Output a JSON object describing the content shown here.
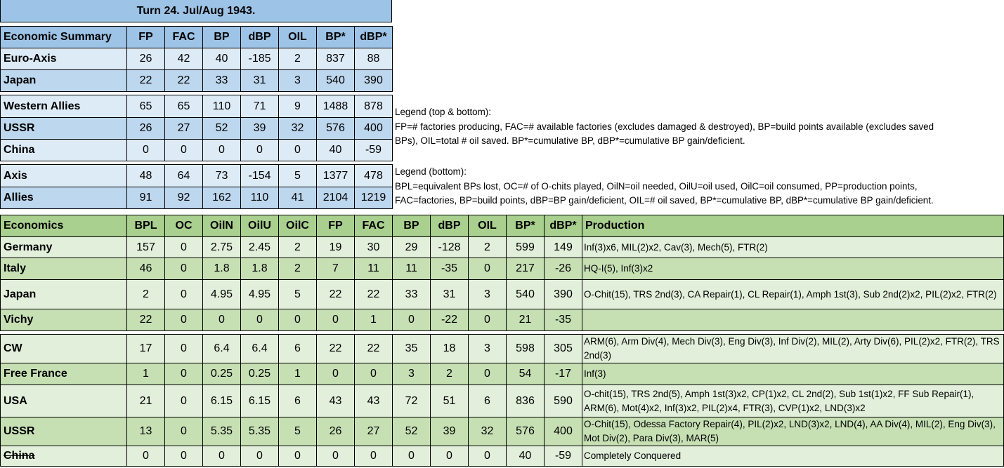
{
  "title": "Turn 24.  Jul/Aug 1943.",
  "colors": {
    "blue_header": "#9dc3e6",
    "blue_light": "#ddebf7",
    "blue_mid": "#bdd7ee",
    "green_header": "#a9d08e",
    "green_light": "#e2efda",
    "green_mid": "#c6e0b4"
  },
  "summary": {
    "headers": [
      "Economic Summary",
      "FP",
      "FAC",
      "BP",
      "dBP",
      "OIL",
      "BP*",
      "dBP*"
    ],
    "groups": [
      [
        [
          "Euro-Axis",
          "26",
          "42",
          "40",
          "-185",
          "2",
          "837",
          "88"
        ],
        [
          "Japan",
          "22",
          "22",
          "33",
          "31",
          "3",
          "540",
          "390"
        ]
      ],
      [
        [
          "Western Allies",
          "65",
          "65",
          "110",
          "71",
          "9",
          "1488",
          "878"
        ],
        [
          "USSR",
          "26",
          "27",
          "52",
          "39",
          "32",
          "576",
          "400"
        ],
        [
          "China",
          "0",
          "0",
          "0",
          "0",
          "0",
          "40",
          "-59"
        ]
      ],
      [
        [
          "Axis",
          "48",
          "64",
          "73",
          "-154",
          "5",
          "1377",
          "478"
        ],
        [
          "Allies",
          "91",
          "92",
          "162",
          "110",
          "41",
          "2104",
          "1219"
        ]
      ]
    ]
  },
  "legend_top": [
    "Legend (top & bottom):",
    "FP=# factories producing, FAC=# available factories (excludes damaged & destroyed), BP=build points available (excludes saved",
    "BPs), OIL=total # oil saved. BP*=cumulative BP, dBP*=cumulative BP gain/deficient."
  ],
  "legend_bottom": [
    "Legend (bottom):",
    "BPL=equivalent BPs lost, OC=# of O-chits played, OilN=oil needed, OilU=oil used, OilC=oil consumed, PP=production points,",
    "FAC=factories, BP=build points, dBP=BP gain/deficient, OIL=# oil saved, BP*=cumulative BP, dBP*=cumulative BP gain/deficient."
  ],
  "economics": {
    "headers": [
      "Economics",
      "BPL",
      "OC",
      "OilN",
      "OilU",
      "OilC",
      "FP",
      "FAC",
      "BP",
      "dBP",
      "OIL",
      "BP*",
      "dBP*",
      "Production"
    ],
    "groups": [
      [
        [
          "Germany",
          "157",
          "0",
          "2.75",
          "2.45",
          "2",
          "19",
          "30",
          "29",
          "-128",
          "2",
          "599",
          "149",
          "Inf(3)x6, MIL(2)x2, Cav(3), Mech(5), FTR(2)"
        ],
        [
          "Italy",
          "46",
          "0",
          "1.8",
          "1.8",
          "2",
          "7",
          "11",
          "11",
          "-35",
          "0",
          "217",
          "-26",
          "HQ-I(5), Inf(3)x2"
        ],
        [
          "Japan",
          "2",
          "0",
          "4.95",
          "4.95",
          "5",
          "22",
          "22",
          "33",
          "31",
          "3",
          "540",
          "390",
          "O-Chit(15), TRS 2nd(3), CA Repair(1), CL Repair(1), Amph 1st(3), Sub 2nd(2)x2, PIL(2)x2, FTR(2)"
        ],
        [
          "Vichy",
          "22",
          "0",
          "0",
          "0",
          "0",
          "0",
          "1",
          "0",
          "-22",
          "0",
          "21",
          "-35",
          ""
        ]
      ],
      [
        [
          "CW",
          "17",
          "0",
          "6.4",
          "6.4",
          "6",
          "22",
          "22",
          "35",
          "18",
          "3",
          "598",
          "305",
          "ARM(6), Arm Div(4), Mech Div(3), Eng Div(3), Inf Div(2), MIL(2), Arty Div(6), PIL(2)x2, FTR(2), TRS 2nd(3)"
        ],
        [
          "Free France",
          "1",
          "0",
          "0.25",
          "0.25",
          "1",
          "0",
          "0",
          "3",
          "2",
          "0",
          "54",
          "-17",
          "Inf(3)"
        ],
        [
          "USA",
          "21",
          "0",
          "6.15",
          "6.15",
          "6",
          "43",
          "43",
          "72",
          "51",
          "6",
          "836",
          "590",
          "O-chit(15), TRS 2nd(5), Amph 1st(3)x2, CP(1)x2, CL 2nd(2), Sub 1st(1)x2, FF Sub Repair(1), ARM(6), Mot(4)x2, Inf(3)x2, PIL(2)x4, FTR(3), CVP(1)x2, LND(3)x2"
        ],
        [
          "USSR",
          "13",
          "0",
          "5.35",
          "5.35",
          "5",
          "26",
          "27",
          "52",
          "39",
          "32",
          "576",
          "400",
          "O-Chit(15), Odessa Factory Repair(4), PIL(2)x2, LND(3)x2, LND(4), AA Div(4), MIL(2), Eng Div(3), Mot Div(2), Para Div(3), MAR(5)"
        ],
        [
          "China",
          "0",
          "0",
          "0",
          "0",
          "0",
          "0",
          "0",
          "0",
          "0",
          "0",
          "40",
          "-59",
          "Completely Conquered"
        ]
      ]
    ],
    "struck_rows": [
      "China"
    ]
  }
}
